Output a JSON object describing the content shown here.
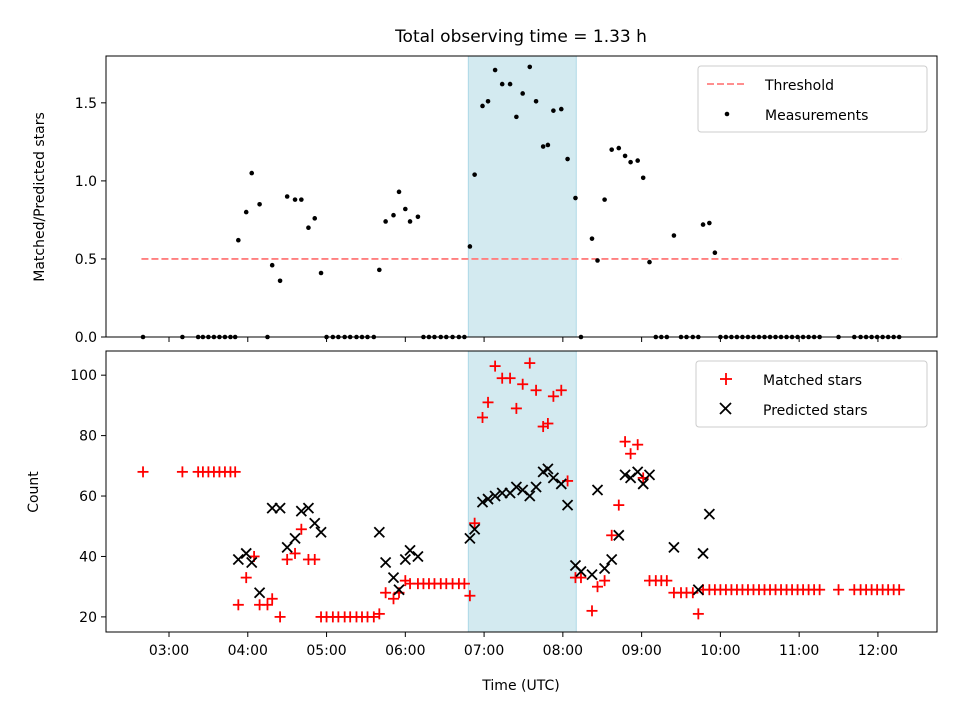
{
  "title": "Total observing time = 1.33 h",
  "xlabel": "Time (UTC)",
  "x_ticks": [
    "03:00",
    "04:00",
    "05:00",
    "06:00",
    "07:00",
    "08:00",
    "09:00",
    "10:00",
    "11:00",
    "12:00"
  ],
  "highlight_window": {
    "start_h": 6.8,
    "end_h": 8.17,
    "color": "#add8e6"
  },
  "colors": {
    "threshold": "#ff7f7f",
    "measurements": "#000000",
    "matched": "#ff0000",
    "predicted": "#000000",
    "highlight": "#d3eaf0"
  },
  "chart_data": [
    {
      "type": "scatter",
      "ylabel": "Matched/Predicted stars",
      "xlim": [
        2.2,
        12.75
      ],
      "ylim": [
        0,
        1.8
      ],
      "y_ticks": [
        "0.0",
        "0.5",
        "1.0",
        "1.5"
      ],
      "legend": [
        "Threshold",
        "Measurements"
      ],
      "legend_position": "top-right",
      "threshold": 0.5,
      "threshold_x_range": [
        2.65,
        12.3
      ],
      "measurements": [
        [
          2.67,
          0
        ],
        [
          3.17,
          0
        ],
        [
          3.37,
          0
        ],
        [
          3.43,
          0
        ],
        [
          3.5,
          0
        ],
        [
          3.57,
          0
        ],
        [
          3.64,
          0
        ],
        [
          3.71,
          0
        ],
        [
          3.78,
          0
        ],
        [
          3.84,
          0
        ],
        [
          3.88,
          0.62
        ],
        [
          3.98,
          0.8
        ],
        [
          4.05,
          1.05
        ],
        [
          4.15,
          0.85
        ],
        [
          4.25,
          0
        ],
        [
          4.31,
          0.46
        ],
        [
          4.41,
          0.36
        ],
        [
          4.5,
          0.9
        ],
        [
          4.6,
          0.88
        ],
        [
          4.68,
          0.88
        ],
        [
          4.77,
          0.7
        ],
        [
          4.85,
          0.76
        ],
        [
          4.93,
          0.41
        ],
        [
          5.0,
          0
        ],
        [
          5.08,
          0
        ],
        [
          5.15,
          0
        ],
        [
          5.23,
          0
        ],
        [
          5.3,
          0
        ],
        [
          5.38,
          0
        ],
        [
          5.45,
          0
        ],
        [
          5.52,
          0
        ],
        [
          5.6,
          0
        ],
        [
          5.67,
          0.43
        ],
        [
          5.75,
          0.74
        ],
        [
          5.85,
          0.78
        ],
        [
          5.92,
          0.93
        ],
        [
          6.0,
          0.82
        ],
        [
          6.06,
          0.74
        ],
        [
          6.16,
          0.77
        ],
        [
          6.23,
          0
        ],
        [
          6.3,
          0
        ],
        [
          6.37,
          0
        ],
        [
          6.45,
          0
        ],
        [
          6.52,
          0
        ],
        [
          6.6,
          0
        ],
        [
          6.68,
          0
        ],
        [
          6.75,
          0
        ],
        [
          6.82,
          0.58
        ],
        [
          6.88,
          1.04
        ],
        [
          6.98,
          1.48
        ],
        [
          7.05,
          1.51
        ],
        [
          7.14,
          1.71
        ],
        [
          7.23,
          1.62
        ],
        [
          7.33,
          1.62
        ],
        [
          7.41,
          1.41
        ],
        [
          7.49,
          1.56
        ],
        [
          7.58,
          1.73
        ],
        [
          7.66,
          1.51
        ],
        [
          7.75,
          1.22
        ],
        [
          7.81,
          1.23
        ],
        [
          7.88,
          1.45
        ],
        [
          7.98,
          1.46
        ],
        [
          8.06,
          1.14
        ],
        [
          8.16,
          0.89
        ],
        [
          8.23,
          0
        ],
        [
          8.37,
          0.63
        ],
        [
          8.44,
          0.49
        ],
        [
          8.53,
          0.88
        ],
        [
          8.62,
          1.2
        ],
        [
          8.71,
          1.21
        ],
        [
          8.79,
          1.16
        ],
        [
          8.86,
          1.12
        ],
        [
          8.95,
          1.13
        ],
        [
          9.02,
          1.02
        ],
        [
          9.1,
          0.48
        ],
        [
          9.18,
          0
        ],
        [
          9.25,
          0
        ],
        [
          9.32,
          0
        ],
        [
          9.41,
          0.65
        ],
        [
          9.5,
          0
        ],
        [
          9.57,
          0
        ],
        [
          9.65,
          0
        ],
        [
          9.72,
          0
        ],
        [
          9.78,
          0.72
        ],
        [
          9.86,
          0.73
        ],
        [
          9.93,
          0.54
        ],
        [
          10.0,
          0
        ],
        [
          10.07,
          0
        ],
        [
          10.14,
          0
        ],
        [
          10.21,
          0
        ],
        [
          10.28,
          0
        ],
        [
          10.35,
          0
        ],
        [
          10.42,
          0
        ],
        [
          10.49,
          0
        ],
        [
          10.56,
          0
        ],
        [
          10.63,
          0
        ],
        [
          10.7,
          0
        ],
        [
          10.77,
          0
        ],
        [
          10.84,
          0
        ],
        [
          10.91,
          0
        ],
        [
          10.98,
          0
        ],
        [
          11.05,
          0
        ],
        [
          11.12,
          0
        ],
        [
          11.19,
          0
        ],
        [
          11.26,
          0
        ],
        [
          11.5,
          0
        ],
        [
          11.7,
          0
        ],
        [
          11.78,
          0
        ],
        [
          11.85,
          0
        ],
        [
          11.92,
          0
        ],
        [
          11.99,
          0
        ],
        [
          12.06,
          0
        ],
        [
          12.13,
          0
        ],
        [
          12.2,
          0
        ],
        [
          12.27,
          0
        ]
      ]
    },
    {
      "type": "scatter",
      "ylabel": "Count",
      "xlabel": "Time (UTC)",
      "xlim": [
        2.2,
        12.75
      ],
      "ylim": [
        15,
        108
      ],
      "y_ticks": [
        "20",
        "40",
        "60",
        "80",
        "100"
      ],
      "legend": [
        "Matched stars",
        "Predicted stars"
      ],
      "legend_position": "top-right",
      "series": [
        {
          "name": "Matched stars",
          "marker": "plus",
          "points": [
            [
              2.67,
              68
            ],
            [
              3.17,
              68
            ],
            [
              3.37,
              68
            ],
            [
              3.43,
              68
            ],
            [
              3.5,
              68
            ],
            [
              3.57,
              68
            ],
            [
              3.64,
              68
            ],
            [
              3.71,
              68
            ],
            [
              3.78,
              68
            ],
            [
              3.84,
              68
            ],
            [
              3.88,
              24
            ],
            [
              3.98,
              33
            ],
            [
              4.08,
              40
            ],
            [
              4.15,
              24
            ],
            [
              4.25,
              24
            ],
            [
              4.31,
              26
            ],
            [
              4.41,
              20
            ],
            [
              4.5,
              39
            ],
            [
              4.6,
              41
            ],
            [
              4.68,
              49
            ],
            [
              4.77,
              39
            ],
            [
              4.85,
              39
            ],
            [
              4.93,
              20
            ],
            [
              5.0,
              20
            ],
            [
              5.08,
              20
            ],
            [
              5.15,
              20
            ],
            [
              5.23,
              20
            ],
            [
              5.3,
              20
            ],
            [
              5.38,
              20
            ],
            [
              5.45,
              20
            ],
            [
              5.52,
              20
            ],
            [
              5.6,
              20
            ],
            [
              5.67,
              21
            ],
            [
              5.75,
              28
            ],
            [
              5.85,
              26
            ],
            [
              5.92,
              28
            ],
            [
              6.0,
              32
            ],
            [
              6.06,
              31
            ],
            [
              6.16,
              31
            ],
            [
              6.23,
              31
            ],
            [
              6.3,
              31
            ],
            [
              6.37,
              31
            ],
            [
              6.45,
              31
            ],
            [
              6.52,
              31
            ],
            [
              6.6,
              31
            ],
            [
              6.68,
              31
            ],
            [
              6.75,
              31
            ],
            [
              6.82,
              27
            ],
            [
              6.88,
              51
            ],
            [
              6.98,
              86
            ],
            [
              7.05,
              91
            ],
            [
              7.14,
              103
            ],
            [
              7.23,
              99
            ],
            [
              7.33,
              99
            ],
            [
              7.41,
              89
            ],
            [
              7.49,
              97
            ],
            [
              7.58,
              104
            ],
            [
              7.66,
              95
            ],
            [
              7.75,
              83
            ],
            [
              7.81,
              84
            ],
            [
              7.88,
              93
            ],
            [
              7.98,
              95
            ],
            [
              8.06,
              65
            ],
            [
              8.16,
              33
            ],
            [
              8.23,
              33
            ],
            [
              8.37,
              22
            ],
            [
              8.44,
              30
            ],
            [
              8.53,
              32
            ],
            [
              8.62,
              47
            ],
            [
              8.71,
              57
            ],
            [
              8.79,
              78
            ],
            [
              8.86,
              74
            ],
            [
              8.95,
              77
            ],
            [
              9.02,
              66
            ],
            [
              9.1,
              32
            ],
            [
              9.18,
              32
            ],
            [
              9.25,
              32
            ],
            [
              9.32,
              32
            ],
            [
              9.41,
              28
            ],
            [
              9.5,
              28
            ],
            [
              9.57,
              28
            ],
            [
              9.65,
              28
            ],
            [
              9.72,
              21
            ],
            [
              9.78,
              29
            ],
            [
              9.86,
              29
            ],
            [
              9.93,
              29
            ],
            [
              10.0,
              29
            ],
            [
              10.07,
              29
            ],
            [
              10.14,
              29
            ],
            [
              10.21,
              29
            ],
            [
              10.28,
              29
            ],
            [
              10.35,
              29
            ],
            [
              10.42,
              29
            ],
            [
              10.49,
              29
            ],
            [
              10.56,
              29
            ],
            [
              10.63,
              29
            ],
            [
              10.7,
              29
            ],
            [
              10.77,
              29
            ],
            [
              10.84,
              29
            ],
            [
              10.91,
              29
            ],
            [
              10.98,
              29
            ],
            [
              11.05,
              29
            ],
            [
              11.12,
              29
            ],
            [
              11.19,
              29
            ],
            [
              11.26,
              29
            ],
            [
              11.5,
              29
            ],
            [
              11.7,
              29
            ],
            [
              11.78,
              29
            ],
            [
              11.85,
              29
            ],
            [
              11.92,
              29
            ],
            [
              11.99,
              29
            ],
            [
              12.06,
              29
            ],
            [
              12.13,
              29
            ],
            [
              12.2,
              29
            ],
            [
              12.27,
              29
            ]
          ]
        },
        {
          "name": "Predicted stars",
          "marker": "x",
          "points": [
            [
              3.88,
              39
            ],
            [
              3.98,
              41
            ],
            [
              4.05,
              38
            ],
            [
              4.15,
              28
            ],
            [
              4.31,
              56
            ],
            [
              4.41,
              56
            ],
            [
              4.5,
              43
            ],
            [
              4.6,
              46
            ],
            [
              4.68,
              55
            ],
            [
              4.77,
              56
            ],
            [
              4.85,
              51
            ],
            [
              4.93,
              48
            ],
            [
              5.67,
              48
            ],
            [
              5.75,
              38
            ],
            [
              5.85,
              33
            ],
            [
              5.92,
              29
            ],
            [
              6.0,
              39
            ],
            [
              6.06,
              42
            ],
            [
              6.16,
              40
            ],
            [
              6.82,
              46
            ],
            [
              6.88,
              49
            ],
            [
              6.98,
              58
            ],
            [
              7.05,
              59
            ],
            [
              7.14,
              60
            ],
            [
              7.23,
              61
            ],
            [
              7.33,
              61
            ],
            [
              7.41,
              63
            ],
            [
              7.49,
              62
            ],
            [
              7.58,
              60
            ],
            [
              7.66,
              63
            ],
            [
              7.75,
              68
            ],
            [
              7.81,
              69
            ],
            [
              7.88,
              66
            ],
            [
              7.98,
              64
            ],
            [
              8.06,
              57
            ],
            [
              8.16,
              37
            ],
            [
              8.23,
              35
            ],
            [
              8.37,
              34
            ],
            [
              8.44,
              62
            ],
            [
              8.53,
              36
            ],
            [
              8.62,
              39
            ],
            [
              8.71,
              47
            ],
            [
              8.79,
              67
            ],
            [
              8.86,
              66
            ],
            [
              8.95,
              68
            ],
            [
              9.02,
              64
            ],
            [
              9.1,
              67
            ],
            [
              9.41,
              43
            ],
            [
              9.72,
              29
            ],
            [
              9.78,
              41
            ],
            [
              9.86,
              54
            ]
          ]
        }
      ]
    }
  ]
}
